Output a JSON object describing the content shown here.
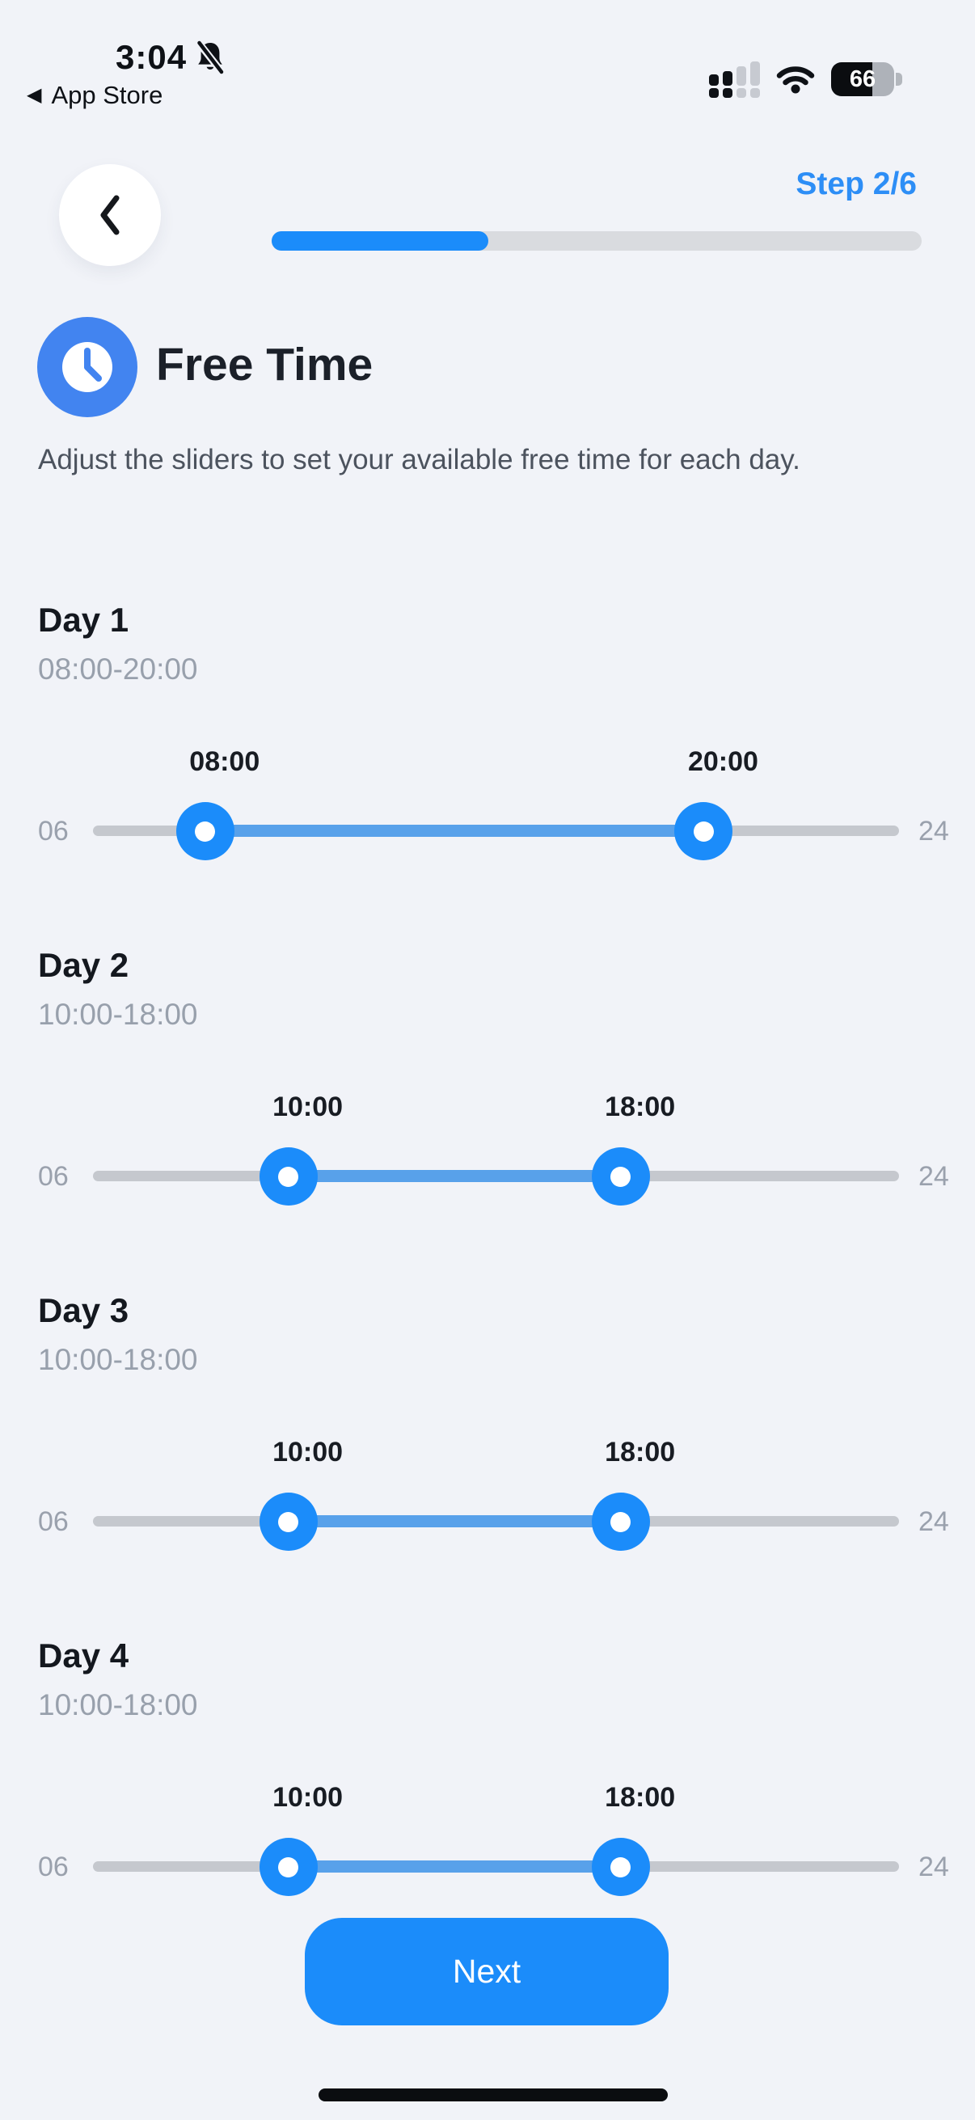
{
  "status_bar": {
    "time": "3:04",
    "back_link_label": "App Store",
    "battery_percent": 66
  },
  "stepper": {
    "step_label": "Step 2/6",
    "progress_percent": 33.3
  },
  "header": {
    "title": "Free Time",
    "description": "Adjust the sliders to set your available free time for each day."
  },
  "slider_config": {
    "min": 6,
    "max": 24,
    "min_label": "06",
    "max_label": "24"
  },
  "days": [
    {
      "name": "Day 1",
      "range_label": "08:00-20:00",
      "start": 8,
      "end": 20,
      "start_label": "08:00",
      "end_label": "20:00"
    },
    {
      "name": "Day 2",
      "range_label": "10:00-18:00",
      "start": 10,
      "end": 18,
      "start_label": "10:00",
      "end_label": "18:00"
    },
    {
      "name": "Day 3",
      "range_label": "10:00-18:00",
      "start": 10,
      "end": 18,
      "start_label": "10:00",
      "end_label": "18:00"
    },
    {
      "name": "Day 4",
      "range_label": "10:00-18:00",
      "start": 10,
      "end": 18,
      "start_label": "10:00",
      "end_label": "18:00"
    }
  ],
  "footer": {
    "next_label": "Next"
  },
  "icons": {
    "time_icon": "notifications-muted",
    "status_icons": [
      "cellular-signal",
      "wifi",
      "battery"
    ],
    "header_icon": "clock"
  },
  "colors": {
    "background": "#f1f3f8",
    "accent_blue": "#1b8cfa",
    "range_blue": "#58a1ea",
    "clock_icon_blue": "#4284f0",
    "step_text_blue": "#2d8ef6",
    "track_gray": "#c5c8ce",
    "subtitle_gray": "#98a0ac"
  }
}
